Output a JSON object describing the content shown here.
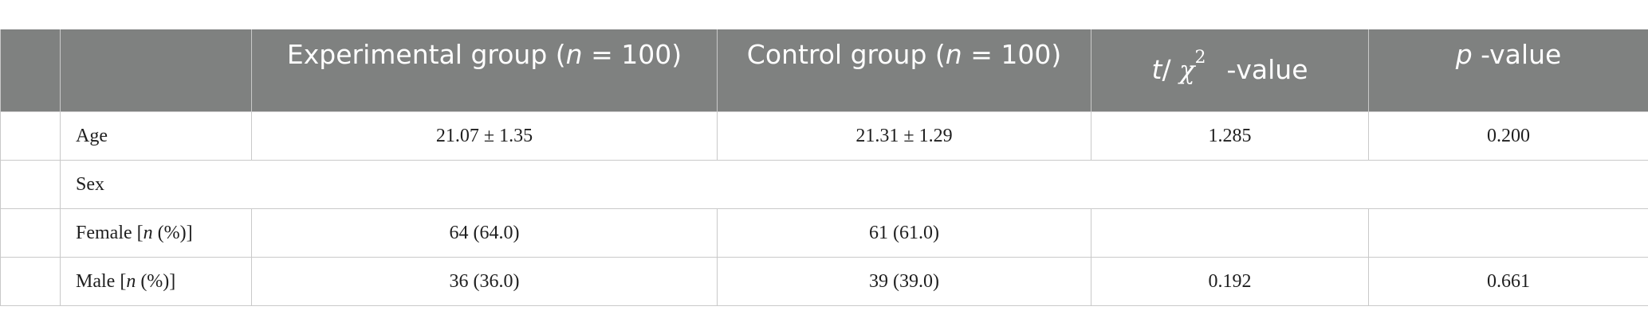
{
  "table": {
    "header": {
      "col0": "",
      "col1": "",
      "experimental": {
        "prefix": "Experimental group (",
        "n": "n",
        "suffix": " = 100)"
      },
      "control": {
        "prefix": "Control group (",
        "n": "n",
        "suffix": " = 100)"
      },
      "stat": {
        "t": "t",
        "slash": "/",
        "chi": "χ",
        "sup": "2",
        "suffix": "-value"
      },
      "p": {
        "p": "p",
        "suffix": " -value"
      }
    },
    "rows": [
      {
        "label": "Age",
        "experimental": "21.07 ± 1.35",
        "control": "21.31 ± 1.29",
        "stat": "1.285",
        "p": "0.200"
      },
      {
        "label": "Sex"
      },
      {
        "label_prefix": "Female [",
        "label_n": "n",
        "label_suffix": " (%)]",
        "experimental": "64 (64.0)",
        "control": "61 (61.0)",
        "stat": "",
        "p": ""
      },
      {
        "label_prefix": "Male [",
        "label_n": "n",
        "label_suffix": " (%)]",
        "experimental": "36 (36.0)",
        "control": "39 (39.0)",
        "stat": "0.192",
        "p": "0.661"
      }
    ]
  }
}
